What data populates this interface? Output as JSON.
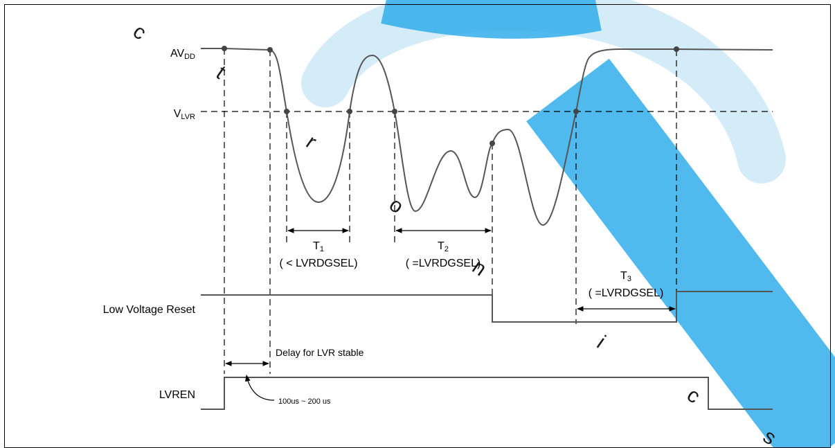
{
  "watermark": {
    "color": "#00a0e9",
    "letters": [
      "c",
      "t",
      "r",
      "o",
      "n",
      "i",
      "c",
      "s"
    ]
  },
  "signals": {
    "avdd": {
      "main": "AV",
      "sub": "DD"
    },
    "vlvr": {
      "main": "V",
      "sub": "LVR"
    },
    "lvr_reset": "Low Voltage Reset",
    "lvren": "LVREN"
  },
  "intervals": {
    "t1": {
      "main": "T",
      "sub": "1",
      "note": "( < LVRDGSEL)"
    },
    "t2": {
      "main": "T",
      "sub": "2",
      "note": "( =LVRDGSEL)"
    },
    "t3": {
      "main": "T",
      "sub": "3",
      "note": "( =LVRDGSEL)"
    }
  },
  "annotations": {
    "delay": "Delay for LVR stable",
    "delay_range": "100us ~ 200 us"
  }
}
